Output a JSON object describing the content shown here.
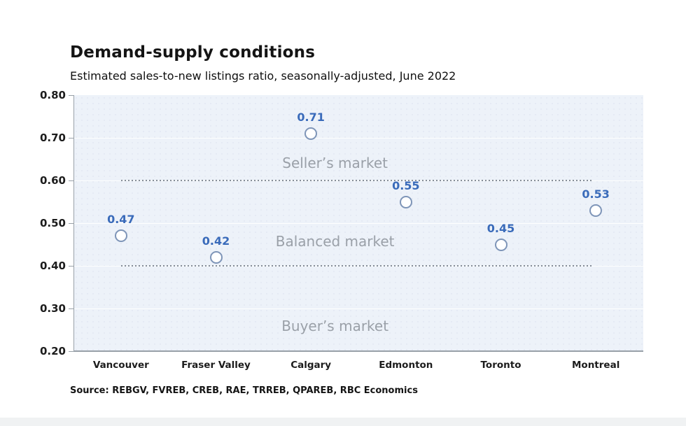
{
  "header": {
    "title": "Demand-supply conditions",
    "subtitle": "Estimated sales-to-new listings ratio, seasonally-adjusted, June 2022"
  },
  "footer": {
    "source": "Source: REBGV, FVREB, CREB, RAE, TRREB, QPAREB, RBC Economics"
  },
  "chart_data": {
    "type": "scatter",
    "title": "Demand-supply conditions",
    "subtitle": "Estimated sales-to-new listings ratio, seasonally-adjusted, June 2022",
    "categories": [
      "Vancouver",
      "Fraser Valley",
      "Calgary",
      "Edmonton",
      "Toronto",
      "Montreal"
    ],
    "values": [
      0.47,
      0.42,
      0.71,
      0.55,
      0.45,
      0.53
    ],
    "point_labels": [
      "0.47",
      "0.42",
      "0.71",
      "0.55",
      "0.45",
      "0.53"
    ],
    "xlabel": "",
    "ylabel": "",
    "ylim": [
      0.2,
      0.8
    ],
    "yticks": [
      0.2,
      0.3,
      0.4,
      0.5,
      0.6,
      0.7,
      0.8
    ],
    "ytick_labels": [
      "0.20",
      "0.30",
      "0.40",
      "0.50",
      "0.60",
      "0.70",
      "0.80"
    ],
    "grid": "horizontal-white",
    "legend": "none",
    "thresholds": [
      {
        "value": 0.6,
        "style": "dotted"
      },
      {
        "value": 0.4,
        "style": "dotted"
      }
    ],
    "zone_labels": [
      {
        "text": "Seller’s market",
        "value": 0.641
      },
      {
        "text": "Balanced market",
        "value": 0.457
      },
      {
        "text": "Buyer’s market",
        "value": 0.259
      }
    ],
    "colors": {
      "point_label": "#3a6bba",
      "point_stroke": "#7e95b8",
      "point_fill": "#ffffff",
      "plot_background": "#edf2f9",
      "axis": "#98a0a8",
      "threshold_dots": "#868d97",
      "zone_label": "#9aa0a8",
      "tick_text": "#1c1c1c"
    }
  }
}
